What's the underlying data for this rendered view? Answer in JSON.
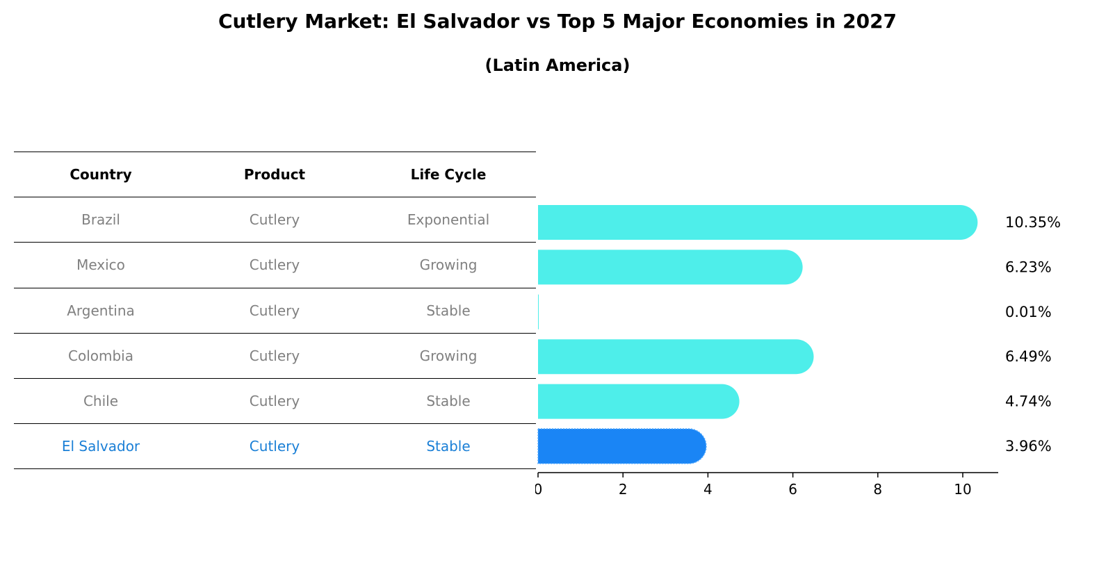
{
  "title": "Cutlery Market: El Salvador vs Top 5 Major Economies in 2027",
  "subtitle": "(Latin America)",
  "table": {
    "headers": [
      "Country",
      "Product",
      "Life Cycle"
    ],
    "rows": [
      [
        "Brazil",
        "Cutlery",
        "Exponential"
      ],
      [
        "Mexico",
        "Cutlery",
        "Growing"
      ],
      [
        "Argentina",
        "Cutlery",
        "Stable"
      ],
      [
        "Colombia",
        "Cutlery",
        "Growing"
      ],
      [
        "Chile",
        "Cutlery",
        "Stable"
      ],
      [
        "El Salvador",
        "Cutlery",
        "Stable"
      ]
    ],
    "highlight_color": "#1a7fd6",
    "text_color": "#808080"
  },
  "chart_data": {
    "type": "bar",
    "orientation": "horizontal",
    "categories": [
      "Brazil",
      "Mexico",
      "Argentina",
      "Colombia",
      "Chile",
      "El Salvador"
    ],
    "values": [
      10.35,
      6.23,
      0.01,
      6.49,
      4.74,
      3.96
    ],
    "value_labels": [
      "10.35%",
      "6.23%",
      "0.01%",
      "6.49%",
      "4.74%",
      "3.96%"
    ],
    "xlim": [
      0,
      10.9
    ],
    "xticks": [
      0,
      2,
      4,
      6,
      8,
      10
    ],
    "xlabel": "",
    "ylabel": "",
    "grid": false,
    "colors": {
      "default": "#4eeeea",
      "highlight": "#1a85f5"
    },
    "highlight_index": 5
  }
}
